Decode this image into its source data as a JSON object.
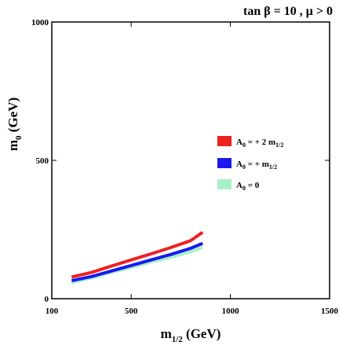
{
  "chart_data": {
    "type": "line",
    "title": "tan β = 10 ,  μ > 0",
    "x_axis": {
      "ticks": [
        100,
        500,
        1000,
        1500
      ],
      "range": [
        100,
        1500
      ],
      "label_main": "m",
      "label_sub": "1/2",
      "label_unit": " (GeV)"
    },
    "y_axis": {
      "ticks": [
        0,
        500,
        1000
      ],
      "range": [
        0,
        1000
      ],
      "label_main": "m",
      "label_sub": "0",
      "label_unit": " (GeV)"
    },
    "grid": false,
    "legend_position": "right",
    "series": [
      {
        "name_parts": [
          "A",
          "0",
          " = + 2 m",
          "1/2"
        ],
        "color": "#ee2020",
        "x": [
          200,
          300,
          400,
          500,
          600,
          700,
          800,
          860
        ],
        "y": [
          78,
          95,
          118,
          140,
          162,
          185,
          210,
          240
        ]
      },
      {
        "name_parts": [
          "A",
          "0",
          " = + m",
          "1/2"
        ],
        "color": "#1a1aee",
        "x": [
          200,
          300,
          400,
          500,
          600,
          700,
          800,
          860
        ],
        "y": [
          65,
          80,
          100,
          120,
          140,
          160,
          182,
          200
        ]
      },
      {
        "name_parts": [
          "A",
          "0",
          " = 0",
          ""
        ],
        "color": "#a8f0c8",
        "x": [
          200,
          300,
          400,
          500,
          600,
          700,
          800,
          860
        ],
        "y": [
          58,
          75,
          95,
          113,
          132,
          150,
          170,
          185
        ]
      }
    ]
  }
}
